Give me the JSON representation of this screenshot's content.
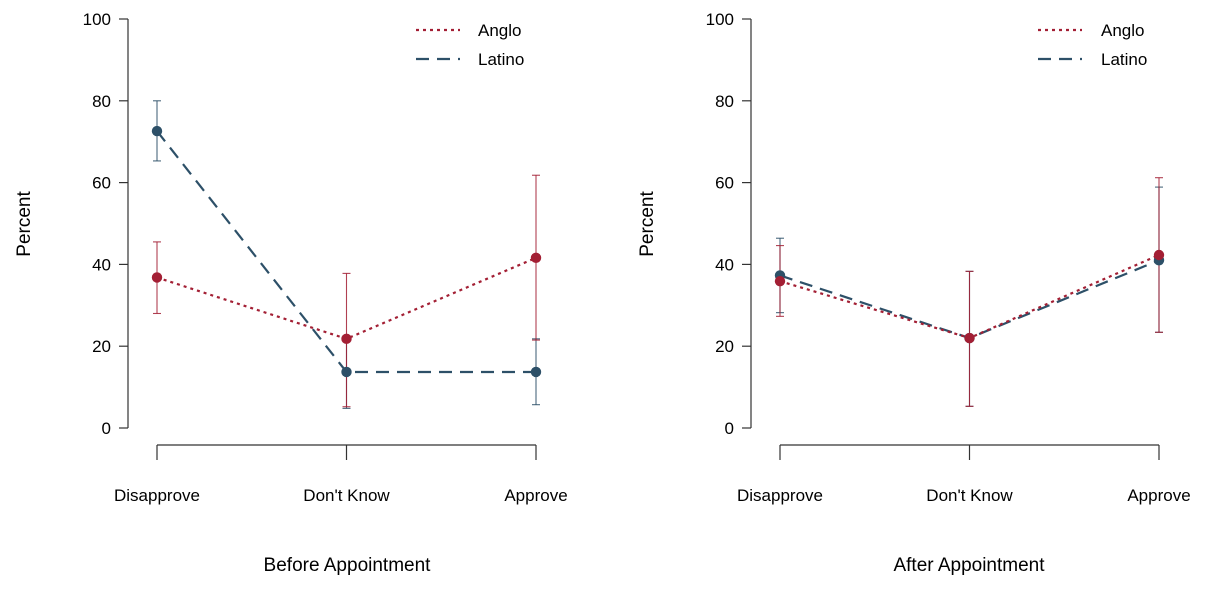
{
  "chart_data": [
    {
      "type": "line",
      "xlabel": "Before Appointment",
      "ylabel": "Percent",
      "categories": [
        "Disapprove",
        "Don't Know",
        "Approve"
      ],
      "ylim": [
        0,
        100
      ],
      "yticks": [
        0,
        20,
        40,
        60,
        80,
        100
      ],
      "grid": false,
      "legend_position": "top-right",
      "series": [
        {
          "name": "Anglo",
          "style": "dotted",
          "color": "#A31F34",
          "values": [
            36.8,
            21.8,
            41.6
          ],
          "error_low": [
            28.0,
            5.2,
            21.5
          ],
          "error_high": [
            45.5,
            37.8,
            61.8
          ]
        },
        {
          "name": "Latino",
          "style": "dashed",
          "color": "#2D5068",
          "values": [
            72.6,
            13.7,
            13.7
          ],
          "error_low": [
            65.3,
            4.8,
            5.7
          ],
          "error_high": [
            80.0,
            21.8,
            21.8
          ]
        }
      ]
    },
    {
      "type": "line",
      "xlabel": "After Appointment",
      "ylabel": "Percent",
      "categories": [
        "Disapprove",
        "Don't Know",
        "Approve"
      ],
      "ylim": [
        0,
        100
      ],
      "yticks": [
        0,
        20,
        40,
        60,
        80,
        100
      ],
      "grid": false,
      "legend_position": "top-right",
      "series": [
        {
          "name": "Anglo",
          "style": "dotted",
          "color": "#A31F34",
          "values": [
            35.9,
            22.0,
            42.3
          ],
          "error_low": [
            27.3,
            5.3,
            23.4
          ],
          "error_high": [
            44.6,
            38.3,
            61.2
          ]
        },
        {
          "name": "Latino",
          "style": "dashed",
          "color": "#2D5068",
          "values": [
            37.3,
            22.0,
            41.0
          ],
          "error_low": [
            28.2,
            5.3,
            23.4
          ],
          "error_high": [
            46.4,
            38.3,
            58.9
          ]
        }
      ]
    }
  ]
}
